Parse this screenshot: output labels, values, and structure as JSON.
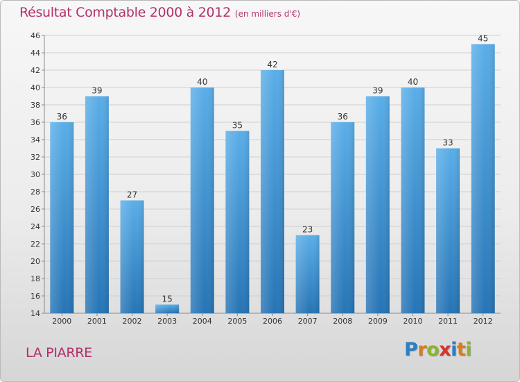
{
  "title": "Résultat Comptable 2000 à 2012",
  "unit_note": "(en milliers d'€)",
  "commune": "LA PIARRE",
  "logo": {
    "text": "Proxiti",
    "letter_colors": [
      "#2b7fc3",
      "#e07b14",
      "#8ab52c",
      "#d9302b",
      "#2b7fc3",
      "#e07b14",
      "#8ab52c"
    ]
  },
  "colors": {
    "title": "#b3306a",
    "bar_top": "#5aaee8",
    "bar_bottom": "#2674b5",
    "grid": "#cfcfcf",
    "axis_text": "#333333"
  },
  "chart_data": {
    "type": "bar",
    "categories": [
      "2000",
      "2001",
      "2002",
      "2003",
      "2004",
      "2005",
      "2006",
      "2007",
      "2008",
      "2009",
      "2010",
      "2011",
      "2012"
    ],
    "values": [
      36,
      39,
      27,
      15,
      40,
      35,
      42,
      23,
      36,
      39,
      40,
      33,
      45
    ],
    "ylim": [
      14,
      46
    ],
    "yticks": [
      14,
      16,
      18,
      20,
      22,
      24,
      26,
      28,
      30,
      32,
      34,
      36,
      38,
      40,
      42,
      44,
      46
    ],
    "grid": true,
    "data_labels": true
  }
}
